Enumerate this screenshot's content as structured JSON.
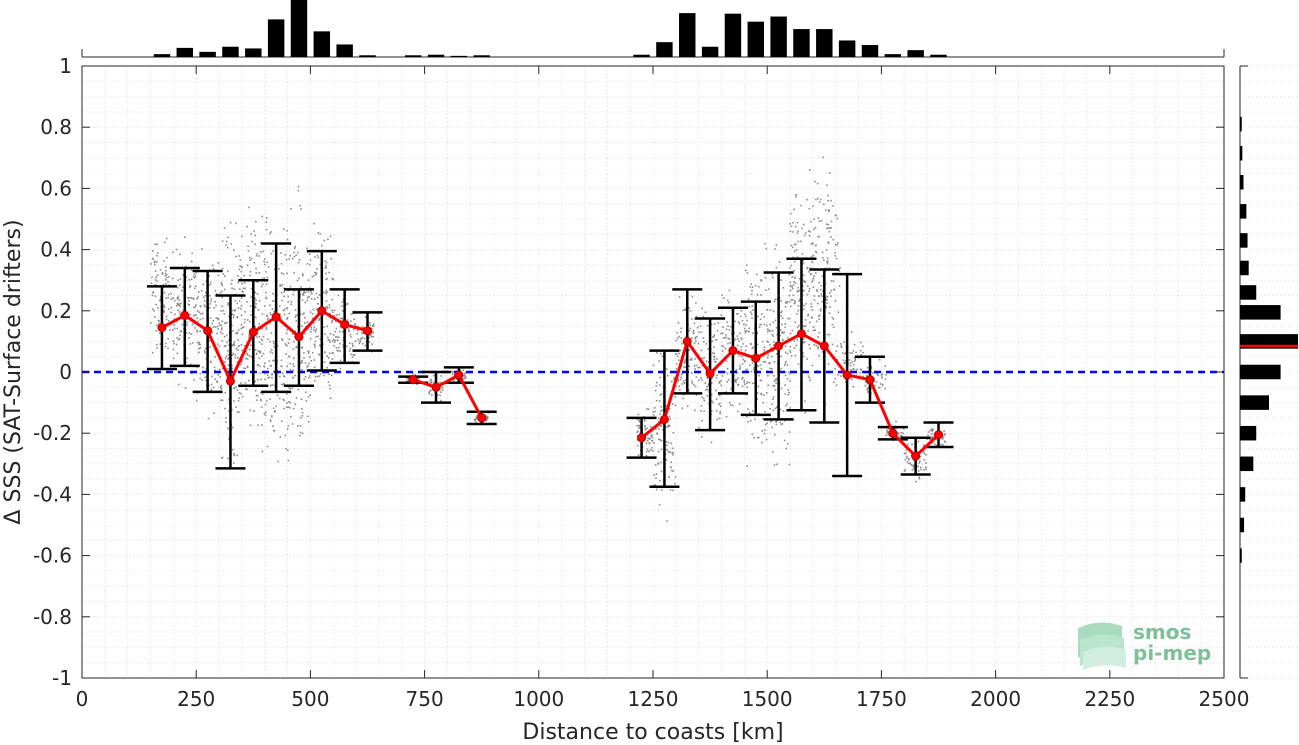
{
  "chart_data": {
    "type": "scatter",
    "xlabel": "Distance to coasts [km]",
    "ylabel": "Δ SSS (SAT-Surface drifters)",
    "xlim": [
      0,
      2500
    ],
    "ylim": [
      -1,
      1
    ],
    "x_ticks": [
      "0",
      "250",
      "500",
      "750",
      "1000",
      "1250",
      "1500",
      "1750",
      "2000",
      "2250",
      "2500"
    ],
    "y_ticks": [
      "-1",
      "-0.8",
      "-0.6",
      "-0.4",
      "-0.2",
      "0",
      "0.2",
      "0.4",
      "0.6",
      "0.8",
      "1"
    ],
    "grid": "minor dotted",
    "zero_line": {
      "y": 0,
      "style": "dashed",
      "color": "#0000ff"
    },
    "binned_mean": {
      "color": "#ff0000",
      "segments": [
        [
          {
            "x": 175,
            "mean": 0.145,
            "lo": 0.01,
            "hi": 0.28
          },
          {
            "x": 225,
            "mean": 0.185,
            "lo": 0.02,
            "hi": 0.34
          },
          {
            "x": 275,
            "mean": 0.135,
            "lo": -0.065,
            "hi": 0.33
          },
          {
            "x": 325,
            "mean": -0.03,
            "lo": -0.315,
            "hi": 0.25
          },
          {
            "x": 375,
            "mean": 0.13,
            "lo": -0.045,
            "hi": 0.3
          },
          {
            "x": 425,
            "mean": 0.18,
            "lo": -0.065,
            "hi": 0.42
          },
          {
            "x": 475,
            "mean": 0.115,
            "lo": -0.045,
            "hi": 0.27
          },
          {
            "x": 525,
            "mean": 0.2,
            "lo": 0.005,
            "hi": 0.395
          },
          {
            "x": 575,
            "mean": 0.155,
            "lo": 0.03,
            "hi": 0.27
          },
          {
            "x": 625,
            "mean": 0.135,
            "lo": 0.07,
            "hi": 0.195
          }
        ],
        [
          {
            "x": 725,
            "mean": -0.025,
            "lo": -0.035,
            "hi": -0.015
          },
          {
            "x": 775,
            "mean": -0.05,
            "lo": -0.1,
            "hi": 0.0
          },
          {
            "x": 825,
            "mean": -0.01,
            "lo": -0.035,
            "hi": 0.015
          },
          {
            "x": 875,
            "mean": -0.15,
            "lo": -0.17,
            "hi": -0.13
          }
        ],
        [
          {
            "x": 1225,
            "mean": -0.215,
            "lo": -0.28,
            "hi": -0.15
          },
          {
            "x": 1275,
            "mean": -0.155,
            "lo": -0.375,
            "hi": 0.07
          },
          {
            "x": 1325,
            "mean": 0.1,
            "lo": -0.07,
            "hi": 0.27
          },
          {
            "x": 1375,
            "mean": -0.005,
            "lo": -0.19,
            "hi": 0.175
          },
          {
            "x": 1425,
            "mean": 0.07,
            "lo": -0.07,
            "hi": 0.21
          },
          {
            "x": 1475,
            "mean": 0.045,
            "lo": -0.14,
            "hi": 0.23
          },
          {
            "x": 1525,
            "mean": 0.085,
            "lo": -0.155,
            "hi": 0.325
          },
          {
            "x": 1575,
            "mean": 0.125,
            "lo": -0.125,
            "hi": 0.37
          },
          {
            "x": 1625,
            "mean": 0.085,
            "lo": -0.165,
            "hi": 0.335
          },
          {
            "x": 1675,
            "mean": -0.01,
            "lo": -0.34,
            "hi": 0.32
          },
          {
            "x": 1725,
            "mean": -0.025,
            "lo": -0.1,
            "hi": 0.05
          },
          {
            "x": 1775,
            "mean": -0.2,
            "lo": -0.22,
            "hi": -0.18
          },
          {
            "x": 1825,
            "mean": -0.275,
            "lo": -0.335,
            "hi": -0.215
          },
          {
            "x": 1875,
            "mean": -0.205,
            "lo": -0.245,
            "hi": -0.165
          }
        ]
      ]
    },
    "scatter_clusters": [
      {
        "x": 160,
        "x_range": [
          150,
          200
        ],
        "y_range": [
          0.0,
          0.5
        ]
      },
      {
        "x": 215,
        "x_range": [
          200,
          250
        ],
        "y_range": [
          -0.1,
          0.5
        ]
      },
      {
        "x": 265,
        "x_range": [
          250,
          300
        ],
        "y_range": [
          -0.2,
          0.48
        ]
      },
      {
        "x": 320,
        "x_range": [
          300,
          345
        ],
        "y_range": [
          -0.42,
          0.6
        ]
      },
      {
        "x": 365,
        "x_range": [
          345,
          390
        ],
        "y_range": [
          -0.3,
          0.6
        ]
      },
      {
        "x": 420,
        "x_range": [
          390,
          445
        ],
        "y_range": [
          -0.47,
          0.65
        ]
      },
      {
        "x": 470,
        "x_range": [
          445,
          500
        ],
        "y_range": [
          -0.45,
          0.68
        ]
      },
      {
        "x": 525,
        "x_range": [
          500,
          550
        ],
        "y_range": [
          -0.2,
          0.6
        ]
      },
      {
        "x": 570,
        "x_range": [
          550,
          600
        ],
        "y_range": [
          -0.05,
          0.3
        ]
      },
      {
        "x": 620,
        "x_range": [
          600,
          640
        ],
        "y_range": [
          0.05,
          0.2
        ]
      },
      {
        "x": 725,
        "x_range": [
          710,
          740
        ],
        "y_range": [
          -0.05,
          0.0
        ]
      },
      {
        "x": 775,
        "x_range": [
          760,
          790
        ],
        "y_range": [
          -0.1,
          0.0
        ]
      },
      {
        "x": 825,
        "x_range": [
          810,
          840
        ],
        "y_range": [
          -0.04,
          0.02
        ]
      },
      {
        "x": 875,
        "x_range": [
          860,
          890
        ],
        "y_range": [
          -0.17,
          -0.13
        ]
      },
      {
        "x": 1230,
        "x_range": [
          1215,
          1250
        ],
        "y_range": [
          -0.3,
          -0.1
        ]
      },
      {
        "x": 1280,
        "x_range": [
          1250,
          1300
        ],
        "y_range": [
          -0.53,
          0.15
        ]
      },
      {
        "x": 1320,
        "x_range": [
          1300,
          1350
        ],
        "y_range": [
          -0.2,
          0.35
        ]
      },
      {
        "x": 1375,
        "x_range": [
          1350,
          1400
        ],
        "y_range": [
          -0.3,
          0.3
        ]
      },
      {
        "x": 1430,
        "x_range": [
          1400,
          1450
        ],
        "y_range": [
          -0.2,
          0.3
        ]
      },
      {
        "x": 1475,
        "x_range": [
          1450,
          1500
        ],
        "y_range": [
          -0.4,
          0.5
        ]
      },
      {
        "x": 1525,
        "x_range": [
          1500,
          1550
        ],
        "y_range": [
          -0.45,
          0.55
        ]
      },
      {
        "x": 1575,
        "x_range": [
          1550,
          1600
        ],
        "y_range": [
          -0.2,
          0.75
        ]
      },
      {
        "x": 1630,
        "x_range": [
          1600,
          1660
        ],
        "y_range": [
          -0.2,
          0.8
        ]
      },
      {
        "x": 1680,
        "x_range": [
          1660,
          1710
        ],
        "y_range": [
          -0.1,
          0.15
        ]
      },
      {
        "x": 1730,
        "x_range": [
          1710,
          1760
        ],
        "y_range": [
          -0.1,
          0.05
        ]
      },
      {
        "x": 1780,
        "x_range": [
          1760,
          1800
        ],
        "y_range": [
          -0.25,
          -0.15
        ]
      },
      {
        "x": 1830,
        "x_range": [
          1800,
          1850
        ],
        "y_range": [
          -0.37,
          -0.2
        ]
      },
      {
        "x": 1870,
        "x_range": [
          1850,
          1890
        ],
        "y_range": [
          -0.25,
          -0.17
        ]
      }
    ],
    "top_histogram": {
      "bin_width": 50,
      "bins": [
        {
          "x": 175,
          "count": 0.05
        },
        {
          "x": 225,
          "count": 0.16
        },
        {
          "x": 275,
          "count": 0.09
        },
        {
          "x": 325,
          "count": 0.18
        },
        {
          "x": 375,
          "count": 0.15
        },
        {
          "x": 425,
          "count": 0.66
        },
        {
          "x": 475,
          "count": 1.0
        },
        {
          "x": 525,
          "count": 0.45
        },
        {
          "x": 575,
          "count": 0.22
        },
        {
          "x": 625,
          "count": 0.03
        },
        {
          "x": 725,
          "count": 0.03
        },
        {
          "x": 775,
          "count": 0.04
        },
        {
          "x": 825,
          "count": 0.02
        },
        {
          "x": 875,
          "count": 0.03
        },
        {
          "x": 1225,
          "count": 0.04
        },
        {
          "x": 1275,
          "count": 0.26
        },
        {
          "x": 1325,
          "count": 0.77
        },
        {
          "x": 1375,
          "count": 0.18
        },
        {
          "x": 1425,
          "count": 0.76
        },
        {
          "x": 1475,
          "count": 0.62
        },
        {
          "x": 1525,
          "count": 0.71
        },
        {
          "x": 1575,
          "count": 0.49
        },
        {
          "x": 1625,
          "count": 0.49
        },
        {
          "x": 1675,
          "count": 0.29
        },
        {
          "x": 1725,
          "count": 0.21
        },
        {
          "x": 1775,
          "count": 0.05
        },
        {
          "x": 1825,
          "count": 0.12
        },
        {
          "x": 1875,
          "count": 0.04
        }
      ]
    },
    "right_histogram": {
      "bin_width": 0.0714,
      "bins": [
        {
          "y": 0.81,
          "count": 0.03
        },
        {
          "y": 0.715,
          "count": 0.04
        },
        {
          "y": 0.62,
          "count": 0.06
        },
        {
          "y": 0.525,
          "count": 0.11
        },
        {
          "y": 0.43,
          "count": 0.13
        },
        {
          "y": 0.34,
          "count": 0.15
        },
        {
          "y": 0.26,
          "count": 0.28
        },
        {
          "y": 0.195,
          "count": 0.7
        },
        {
          "y": 0.1,
          "count": 1.0
        },
        {
          "y": 0.0,
          "count": 0.7
        },
        {
          "y": -0.1,
          "count": 0.5
        },
        {
          "y": -0.2,
          "count": 0.28
        },
        {
          "y": -0.3,
          "count": 0.23
        },
        {
          "y": -0.4,
          "count": 0.09
        },
        {
          "y": -0.5,
          "count": 0.07
        },
        {
          "y": -0.6,
          "count": 0.03
        }
      ],
      "median_line": {
        "y": 0.085,
        "color": "#ff0000"
      }
    },
    "logo_lines": [
      "smos",
      "pi-mep"
    ]
  }
}
